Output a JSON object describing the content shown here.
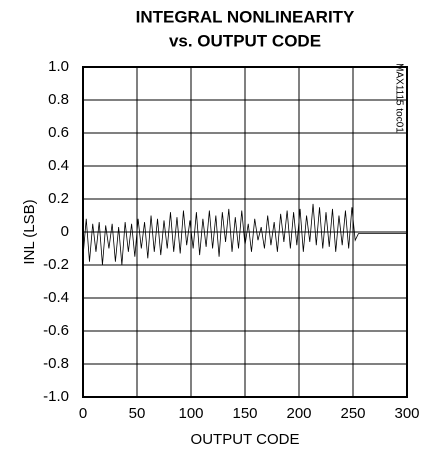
{
  "chart_data": {
    "type": "line",
    "title": [
      "INTEGRAL NONLINEARITY",
      "vs. OUTPUT CODE"
    ],
    "x_label": "OUTPUT CODE",
    "y_label": "INL (LSB)",
    "annotation": "MAX1115 toc01",
    "x": [
      0,
      3,
      6,
      9,
      12,
      15,
      18,
      21,
      24,
      27,
      30,
      33,
      36,
      39,
      42,
      45,
      48,
      51,
      54,
      57,
      60,
      63,
      66,
      69,
      72,
      75,
      78,
      81,
      84,
      87,
      90,
      93,
      96,
      99,
      102,
      105,
      108,
      111,
      114,
      117,
      120,
      123,
      126,
      129,
      132,
      135,
      138,
      141,
      144,
      147,
      150,
      153,
      156,
      159,
      162,
      165,
      168,
      171,
      174,
      177,
      180,
      183,
      186,
      189,
      192,
      195,
      198,
      201,
      204,
      207,
      210,
      213,
      216,
      219,
      222,
      225,
      228,
      231,
      234,
      237,
      240,
      243,
      246,
      249,
      252,
      255,
      300
    ],
    "series": [
      {
        "name": "INL",
        "color": "#000000",
        "values": [
          -0.15,
          0.08,
          -0.18,
          0.05,
          -0.12,
          0.06,
          -0.2,
          0.04,
          -0.1,
          0.05,
          -0.18,
          0.03,
          -0.2,
          0.06,
          -0.12,
          0.05,
          -0.15,
          0.08,
          -0.1,
          0.06,
          -0.16,
          0.1,
          -0.12,
          0.08,
          -0.14,
          0.07,
          -0.1,
          0.12,
          -0.12,
          0.09,
          -0.13,
          0.13,
          -0.08,
          0.07,
          -0.1,
          0.12,
          -0.14,
          0.08,
          -0.09,
          0.13,
          -0.1,
          0.1,
          -0.15,
          0.12,
          -0.06,
          0.14,
          -0.12,
          0.09,
          -0.1,
          0.13,
          -0.08,
          0.05,
          -0.12,
          0.08,
          -0.05,
          0.03,
          -0.1,
          0.1,
          -0.08,
          0.06,
          -0.12,
          0.11,
          -0.06,
          0.13,
          -0.1,
          0.12,
          -0.08,
          0.14,
          -0.12,
          0.1,
          -0.06,
          0.17,
          -0.08,
          0.15,
          -0.1,
          0.12,
          -0.09,
          0.14,
          -0.12,
          0.1,
          -0.08,
          0.13,
          -0.1,
          0.15,
          -0.05,
          -0.01,
          -0.01
        ]
      }
    ],
    "xlim": [
      0,
      300
    ],
    "xticks": [
      0,
      50,
      100,
      150,
      200,
      250,
      300
    ],
    "ylim": [
      -1,
      1
    ],
    "yticks": [
      {
        "value": -1,
        "label": "-1.0"
      },
      -0.8,
      -0.6,
      -0.4,
      -0.2,
      0,
      0.2,
      0.4,
      0.6,
      0.8,
      {
        "value": 1,
        "label": "1.0"
      }
    ],
    "grid": true
  }
}
